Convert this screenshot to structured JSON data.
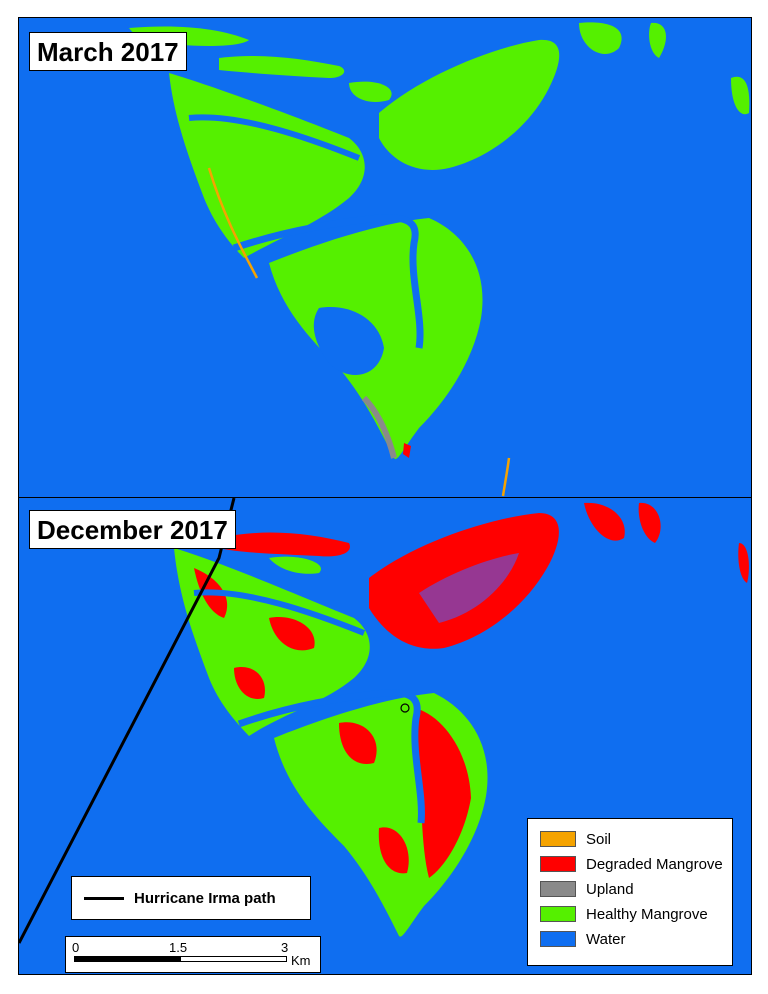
{
  "panels": {
    "top": {
      "label": "March 2017"
    },
    "bottom": {
      "label": "December 2017"
    }
  },
  "legend": {
    "items": [
      {
        "label": "Soil",
        "color": "#f5a300"
      },
      {
        "label": "Degraded Mangrove",
        "color": "#ff0000"
      },
      {
        "label": "Upland",
        "color": "#8a8a8a"
      },
      {
        "label": "Healthy Mangrove",
        "color": "#55f000"
      },
      {
        "label": "Water",
        "color": "#0f6ef0"
      }
    ]
  },
  "hurricane_legend": {
    "label": "Hurricane Irma path"
  },
  "scale_bar": {
    "tick_0": "0",
    "tick_1": "1.5",
    "tick_2": "3",
    "unit": "Km"
  }
}
